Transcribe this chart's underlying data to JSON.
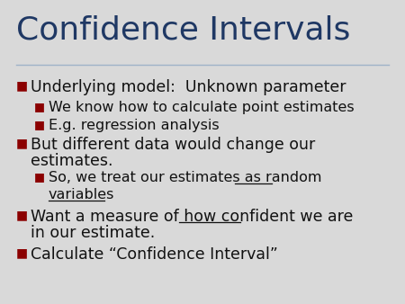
{
  "title": "Confidence Intervals",
  "title_color": "#1F3864",
  "title_fontsize": 26,
  "background_color": "#D9D9D9",
  "bullet_color": "#8B0000",
  "text_color": "#111111",
  "line_color": "#9EB3C8",
  "main_fontsize": 12.5,
  "sub_fontsize": 11.5,
  "lines": [
    {
      "level": 1,
      "text": "Underlying model:  Unknown parameter",
      "underline": ""
    },
    {
      "level": 2,
      "text": "We know how to calculate point estimates",
      "underline": ""
    },
    {
      "level": 2,
      "text": "E.g. regression analysis",
      "underline": ""
    },
    {
      "level": 1,
      "text": "But different data would change our",
      "underline": ""
    },
    {
      "level": 0,
      "text": "estimates.",
      "underline": ""
    },
    {
      "level": 2,
      "text": "So, we treat our estimates as random",
      "underline": "random"
    },
    {
      "level": 0,
      "text": "variables",
      "underline": "variables",
      "indent": 2
    },
    {
      "level": 1,
      "text": "Want a measure of how confident we are",
      "underline": "confident"
    },
    {
      "level": 0,
      "text": "in our estimate.",
      "underline": ""
    },
    {
      "level": 1,
      "text": "Calculate “Confidence Interval”",
      "underline": ""
    }
  ]
}
